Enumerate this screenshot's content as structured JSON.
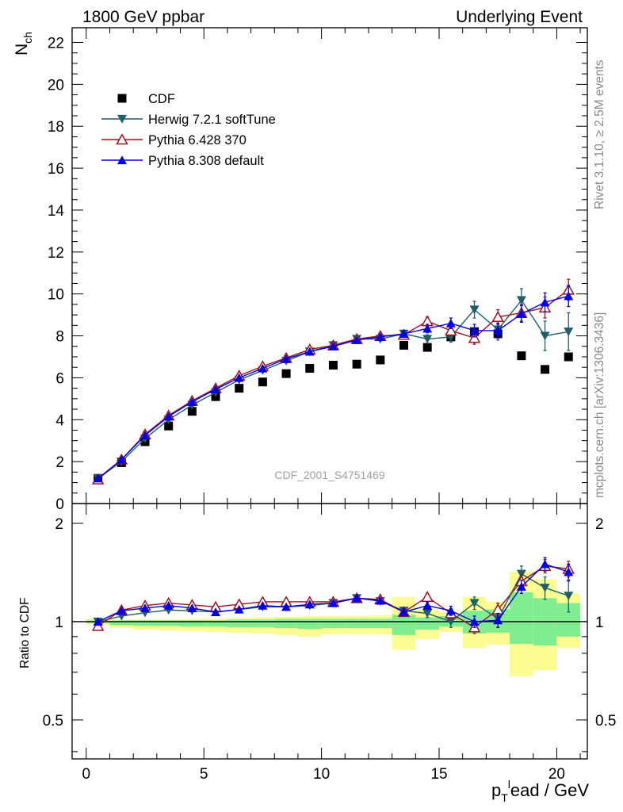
{
  "header": {
    "left": "1800 GeV ppbar",
    "right": "Underlying Event"
  },
  "watermark": "CDF_2001_S4751469",
  "side_text": {
    "rivet": "Rivet 3.1.10, ≥ 2.5M events",
    "mcplots": "mcplots.cern.ch [arXiv:1306.3436]"
  },
  "chart_data": [
    {
      "type": "scatter",
      "panel": "main",
      "ylabel_main": "N",
      "ylabel_sub": "ch",
      "xlim": [
        -0.6,
        21.3
      ],
      "ylim": [
        0,
        22.7
      ],
      "yticks": [
        0,
        2,
        4,
        6,
        8,
        10,
        12,
        14,
        16,
        18,
        20,
        22
      ],
      "xticks": [
        0,
        5,
        10,
        15,
        20
      ],
      "x": [
        0.5,
        1.5,
        2.5,
        3.5,
        4.5,
        5.5,
        6.5,
        7.5,
        8.5,
        9.5,
        10.5,
        11.5,
        12.5,
        13.5,
        14.5,
        15.5,
        16.5,
        17.5,
        18.5,
        19.5,
        20.5
      ],
      "legend_position": "top-left",
      "series": [
        {
          "name": "CDF",
          "color": "#000000",
          "marker": "square",
          "values": [
            1.2,
            1.95,
            2.95,
            3.7,
            4.4,
            5.1,
            5.5,
            5.8,
            6.2,
            6.45,
            6.6,
            6.65,
            6.85,
            7.55,
            7.45,
            7.95,
            8.2,
            8.1,
            7.05,
            6.4,
            7.0
          ]
        },
        {
          "name": "Herwig 7.2.1 softTune",
          "color": "#1f5f6a",
          "marker": "triangle-down",
          "values": [
            1.2,
            2.0,
            3.1,
            4.0,
            4.7,
            5.3,
            5.9,
            6.35,
            6.8,
            7.25,
            7.55,
            7.85,
            7.85,
            8.1,
            7.85,
            7.95,
            9.25,
            8.3,
            9.7,
            8.0,
            8.2
          ],
          "errors": [
            0.05,
            0.05,
            0.05,
            0.05,
            0.05,
            0.05,
            0.05,
            0.05,
            0.05,
            0.05,
            0.05,
            0.1,
            0.1,
            0.15,
            0.2,
            0.25,
            0.4,
            0.5,
            0.55,
            0.7,
            0.9
          ]
        },
        {
          "name": "Pythia 6.428 370",
          "color": "#a01020",
          "marker": "triangle-open",
          "values": [
            1.15,
            2.1,
            3.3,
            4.2,
            4.9,
            5.5,
            6.1,
            6.55,
            6.95,
            7.35,
            7.55,
            7.85,
            8.0,
            8.05,
            8.7,
            8.25,
            7.9,
            8.9,
            9.1,
            9.35,
            10.2
          ],
          "errors": [
            0.05,
            0.05,
            0.05,
            0.05,
            0.05,
            0.05,
            0.05,
            0.05,
            0.05,
            0.05,
            0.05,
            0.1,
            0.1,
            0.15,
            0.2,
            0.25,
            0.3,
            0.35,
            0.4,
            0.5,
            0.5
          ]
        },
        {
          "name": "Pythia 8.308 default",
          "color": "#0000e0",
          "marker": "triangle-up",
          "values": [
            1.2,
            2.1,
            3.25,
            4.15,
            4.85,
            5.45,
            6.0,
            6.45,
            6.9,
            7.25,
            7.5,
            7.8,
            7.95,
            8.1,
            8.35,
            8.6,
            8.25,
            8.25,
            9.05,
            9.6,
            9.9
          ],
          "errors": [
            0.05,
            0.05,
            0.05,
            0.05,
            0.05,
            0.05,
            0.05,
            0.05,
            0.05,
            0.05,
            0.05,
            0.1,
            0.1,
            0.15,
            0.2,
            0.25,
            0.3,
            0.35,
            0.4,
            0.45,
            0.5
          ]
        }
      ]
    },
    {
      "type": "scatter",
      "panel": "ratio",
      "ylabel": "Ratio to CDF",
      "xlabel_main": "p",
      "xlabel_sub": "T",
      "xlabel_sup": "l",
      "xlabel_rest": "ead / GeV",
      "xlim": [
        -0.6,
        21.3
      ],
      "ylim": [
        0.38,
        2.3
      ],
      "yticks": [
        0.5,
        1,
        2
      ],
      "ytick_labels": [
        "0.5",
        "1",
        "2"
      ],
      "xticks": [
        0,
        5,
        10,
        15,
        20
      ],
      "xtick_labels": [
        "0",
        "5",
        "10",
        "15",
        "20"
      ],
      "x": [
        0.5,
        1.5,
        2.5,
        3.5,
        4.5,
        5.5,
        6.5,
        7.5,
        8.5,
        9.5,
        10.5,
        11.5,
        12.5,
        13.5,
        14.5,
        15.5,
        16.5,
        17.5,
        18.5,
        19.5,
        20.5
      ],
      "bands": {
        "green_color": "#80ee90",
        "yellow_color": "#fcfc90",
        "bins": [
          {
            "x0": 0,
            "x1": 1,
            "g": [
              0.99,
              1.01
            ],
            "y": [
              0.98,
              1.02
            ]
          },
          {
            "x0": 1,
            "x1": 2,
            "g": [
              0.975,
              1.01
            ],
            "y": [
              0.955,
              1.015
            ]
          },
          {
            "x0": 2,
            "x1": 3,
            "g": [
              0.97,
              1.01
            ],
            "y": [
              0.945,
              1.015
            ]
          },
          {
            "x0": 3,
            "x1": 4,
            "g": [
              0.97,
              1.01
            ],
            "y": [
              0.94,
              1.015
            ]
          },
          {
            "x0": 4,
            "x1": 5,
            "g": [
              0.965,
              1.01
            ],
            "y": [
              0.935,
              1.02
            ]
          },
          {
            "x0": 5,
            "x1": 6,
            "g": [
              0.965,
              1.01
            ],
            "y": [
              0.93,
              1.02
            ]
          },
          {
            "x0": 6,
            "x1": 7,
            "g": [
              0.96,
              1.015
            ],
            "y": [
              0.925,
              1.025
            ]
          },
          {
            "x0": 7,
            "x1": 8,
            "g": [
              0.96,
              1.015
            ],
            "y": [
              0.92,
              1.03
            ]
          },
          {
            "x0": 8,
            "x1": 9,
            "g": [
              0.955,
              1.02
            ],
            "y": [
              0.91,
              1.035
            ]
          },
          {
            "x0": 9,
            "x1": 10,
            "g": [
              0.95,
              1.02
            ],
            "y": [
              0.9,
              1.04
            ]
          },
          {
            "x0": 10,
            "x1": 11,
            "g": [
              0.955,
              1.02
            ],
            "y": [
              0.915,
              1.04
            ]
          },
          {
            "x0": 11,
            "x1": 12,
            "g": [
              0.955,
              1.02
            ],
            "y": [
              0.915,
              1.04
            ]
          },
          {
            "x0": 12,
            "x1": 13,
            "g": [
              0.955,
              1.02
            ],
            "y": [
              0.915,
              1.045
            ]
          },
          {
            "x0": 13,
            "x1": 14,
            "g": [
              0.91,
              1.05
            ],
            "y": [
              0.82,
              1.19
            ]
          },
          {
            "x0": 14,
            "x1": 15,
            "g": [
              0.945,
              1.03
            ],
            "y": [
              0.885,
              1.09
            ]
          },
          {
            "x0": 15,
            "x1": 16,
            "g": [
              0.965,
              1.04
            ],
            "y": [
              0.93,
              1.07
            ]
          },
          {
            "x0": 16,
            "x1": 17,
            "g": [
              0.92,
              1.08
            ],
            "y": [
              0.83,
              1.19
            ]
          },
          {
            "x0": 17,
            "x1": 18,
            "g": [
              0.925,
              1.09
            ],
            "y": [
              0.85,
              1.15
            ]
          },
          {
            "x0": 18,
            "x1": 19,
            "g": [
              0.855,
              1.23
            ],
            "y": [
              0.68,
              1.42
            ]
          },
          {
            "x0": 19,
            "x1": 20,
            "g": [
              0.845,
              1.18
            ],
            "y": [
              0.71,
              1.35
            ]
          },
          {
            "x0": 20,
            "x1": 21,
            "g": [
              0.9,
              1.14
            ],
            "y": [
              0.83,
              1.22
            ]
          }
        ]
      },
      "series": [
        {
          "name": "Herwig 7.2.1 softTune",
          "color": "#1f5f6a",
          "marker": "triangle-down",
          "values": [
            1.0,
            1.04,
            1.065,
            1.085,
            1.08,
            1.07,
            1.09,
            1.11,
            1.11,
            1.12,
            1.14,
            1.18,
            1.155,
            1.08,
            1.06,
            1.0,
            1.14,
            1.02,
            1.4,
            1.27,
            1.2
          ],
          "errors": [
            0.01,
            0.01,
            0.01,
            0.01,
            0.01,
            0.01,
            0.01,
            0.01,
            0.01,
            0.01,
            0.015,
            0.02,
            0.02,
            0.025,
            0.03,
            0.04,
            0.05,
            0.06,
            0.08,
            0.1,
            0.13
          ]
        },
        {
          "name": "Pythia 6.428 370",
          "color": "#a01020",
          "marker": "triangle-open",
          "values": [
            0.97,
            1.085,
            1.12,
            1.14,
            1.125,
            1.11,
            1.13,
            1.15,
            1.15,
            1.15,
            1.15,
            1.18,
            1.17,
            1.07,
            1.19,
            1.06,
            0.96,
            1.09,
            1.33,
            1.48,
            1.45
          ],
          "errors": [
            0.01,
            0.01,
            0.01,
            0.01,
            0.01,
            0.01,
            0.01,
            0.01,
            0.01,
            0.01,
            0.015,
            0.02,
            0.02,
            0.025,
            0.03,
            0.035,
            0.04,
            0.05,
            0.06,
            0.07,
            0.08
          ]
        },
        {
          "name": "Pythia 8.308 default",
          "color": "#0000e0",
          "marker": "triangle-up",
          "values": [
            1.0,
            1.08,
            1.1,
            1.12,
            1.1,
            1.07,
            1.09,
            1.12,
            1.11,
            1.13,
            1.14,
            1.18,
            1.16,
            1.07,
            1.12,
            1.08,
            1.0,
            1.01,
            1.28,
            1.5,
            1.42
          ],
          "errors": [
            0.01,
            0.01,
            0.01,
            0.01,
            0.01,
            0.01,
            0.01,
            0.01,
            0.01,
            0.01,
            0.015,
            0.02,
            0.02,
            0.025,
            0.03,
            0.035,
            0.04,
            0.05,
            0.06,
            0.07,
            0.08
          ]
        }
      ]
    }
  ]
}
